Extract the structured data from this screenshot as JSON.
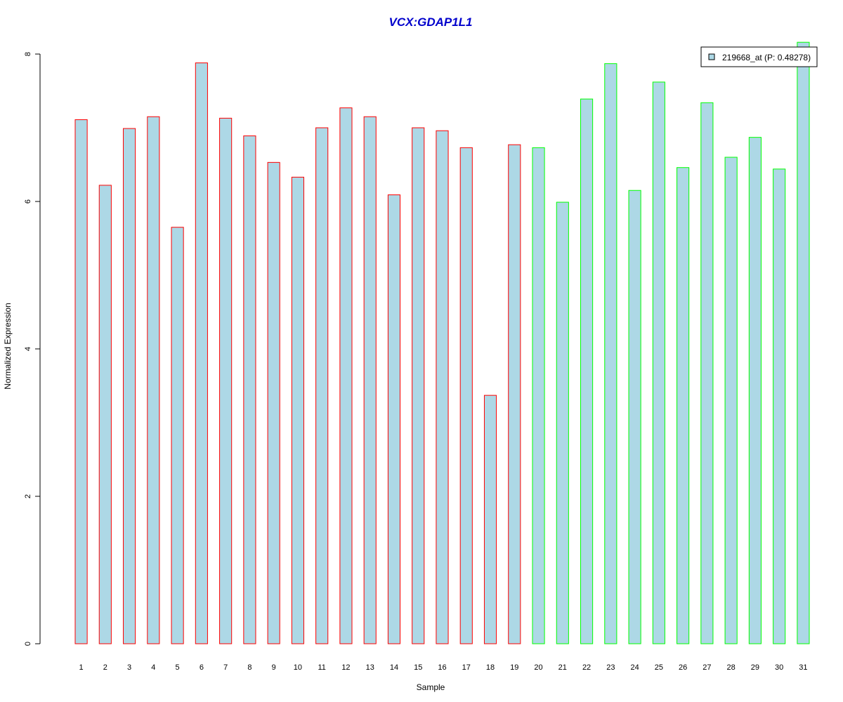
{
  "chart_data": {
    "type": "bar",
    "title": "VCX:GDAP1L1",
    "xlabel": "Sample",
    "ylabel": "Normalized Expression",
    "ylim": [
      0,
      8
    ],
    "yticks": [
      "0",
      "2",
      "4",
      "6",
      "8"
    ],
    "categories": [
      "1",
      "2",
      "3",
      "4",
      "5",
      "6",
      "7",
      "8",
      "9",
      "10",
      "11",
      "12",
      "13",
      "14",
      "15",
      "16",
      "17",
      "18",
      "19",
      "20",
      "21",
      "22",
      "23",
      "24",
      "25",
      "26",
      "27",
      "28",
      "29",
      "30",
      "31"
    ],
    "values": [
      7.11,
      6.22,
      6.99,
      7.15,
      5.65,
      7.88,
      7.13,
      6.89,
      6.53,
      6.33,
      7.0,
      7.27,
      7.15,
      6.09,
      7.0,
      6.96,
      6.73,
      3.37,
      6.77,
      6.73,
      5.99,
      7.39,
      7.87,
      6.15,
      7.62,
      6.46,
      7.34,
      6.6,
      6.87,
      6.44,
      8.16
    ],
    "groups": [
      "a",
      "a",
      "a",
      "a",
      "a",
      "a",
      "a",
      "a",
      "a",
      "a",
      "a",
      "a",
      "a",
      "a",
      "a",
      "a",
      "a",
      "a",
      "a",
      "b",
      "b",
      "b",
      "b",
      "b",
      "b",
      "b",
      "b",
      "b",
      "b",
      "b",
      "b"
    ],
    "fill_color": "#add8e6",
    "group_border_colors": {
      "a": "#ff0000",
      "b": "#00ff00"
    },
    "title_color": "#0000cc",
    "legend": {
      "placement": "top-right",
      "label": "219668_at (P: 0.48278)"
    },
    "grid": false
  }
}
